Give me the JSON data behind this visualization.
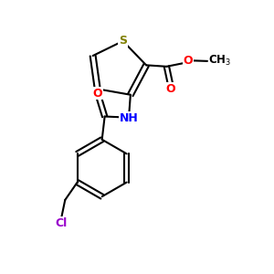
{
  "bg_color": "#ffffff",
  "atom_colors": {
    "S": "#808000",
    "O": "#ff0000",
    "N": "#0000ff",
    "Cl": "#9900cc",
    "C": "#000000",
    "H": "#000000"
  },
  "bond_color": "#000000",
  "font_size": 9,
  "figsize": [
    3.0,
    3.0
  ],
  "dpi": 100
}
